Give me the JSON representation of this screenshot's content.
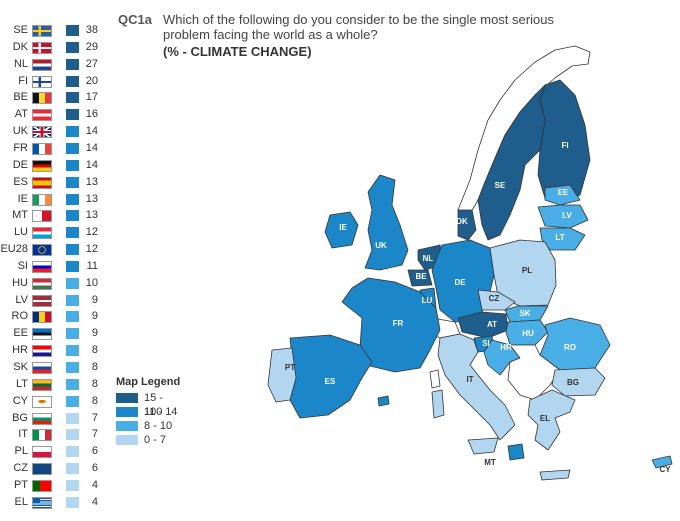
{
  "question": {
    "code": "QC1a",
    "text": "Which of the following do you consider to be the single most serious problem facing the world as a whole?",
    "subtitle": "(% - CLIMATE CHANGE)"
  },
  "legend": {
    "title": "Map Legend",
    "items": [
      {
        "label": "15 - 100",
        "color": "#1f5d8c"
      },
      {
        "label": "11 - 14",
        "color": "#1b87c9"
      },
      {
        "label": "8 - 10",
        "color": "#49ade6"
      },
      {
        "label": "0 - 7",
        "color": "#b2d6f0"
      }
    ]
  },
  "countries": [
    {
      "code": "SE",
      "value": "38",
      "flag": "se",
      "color": "#1f5d8c"
    },
    {
      "code": "DK",
      "value": "29",
      "flag": "dk",
      "color": "#1f5d8c"
    },
    {
      "code": "NL",
      "value": "27",
      "flag": "nl",
      "color": "#1f5d8c"
    },
    {
      "code": "FI",
      "value": "20",
      "flag": "fi",
      "color": "#1f5d8c"
    },
    {
      "code": "BE",
      "value": "17",
      "flag": "be",
      "color": "#1f5d8c"
    },
    {
      "code": "AT",
      "value": "16",
      "flag": "at",
      "color": "#1f5d8c"
    },
    {
      "code": "UK",
      "value": "14",
      "flag": "uk",
      "color": "#1b87c9"
    },
    {
      "code": "FR",
      "value": "14",
      "flag": "fr",
      "color": "#1b87c9"
    },
    {
      "code": "DE",
      "value": "14",
      "flag": "de",
      "color": "#1b87c9"
    },
    {
      "code": "ES",
      "value": "13",
      "flag": "es",
      "color": "#1b87c9"
    },
    {
      "code": "IE",
      "value": "13",
      "flag": "ie",
      "color": "#1b87c9"
    },
    {
      "code": "MT",
      "value": "13",
      "flag": "mt",
      "color": "#1b87c9"
    },
    {
      "code": "LU",
      "value": "12",
      "flag": "lu",
      "color": "#1b87c9"
    },
    {
      "code": "EU28",
      "value": "12",
      "flag": "eu",
      "color": "#1b87c9"
    },
    {
      "code": "SI",
      "value": "11",
      "flag": "si",
      "color": "#1b87c9"
    },
    {
      "code": "HU",
      "value": "10",
      "flag": "hu",
      "color": "#49ade6"
    },
    {
      "code": "LV",
      "value": "9",
      "flag": "lv",
      "color": "#49ade6"
    },
    {
      "code": "RO",
      "value": "9",
      "flag": "ro",
      "color": "#49ade6"
    },
    {
      "code": "EE",
      "value": "9",
      "flag": "ee",
      "color": "#49ade6"
    },
    {
      "code": "HR",
      "value": "8",
      "flag": "hr",
      "color": "#49ade6"
    },
    {
      "code": "SK",
      "value": "8",
      "flag": "sk",
      "color": "#49ade6"
    },
    {
      "code": "LT",
      "value": "8",
      "flag": "lt",
      "color": "#49ade6"
    },
    {
      "code": "CY",
      "value": "8",
      "flag": "cy",
      "color": "#49ade6"
    },
    {
      "code": "BG",
      "value": "7",
      "flag": "bg",
      "color": "#b2d6f0"
    },
    {
      "code": "IT",
      "value": "7",
      "flag": "it",
      "color": "#b2d6f0"
    },
    {
      "code": "PL",
      "value": "6",
      "flag": "pl",
      "color": "#b2d6f0"
    },
    {
      "code": "CZ",
      "value": "6",
      "flag": "cz",
      "color": "#b2d6f0"
    },
    {
      "code": "PT",
      "value": "4",
      "flag": "pt",
      "color": "#b2d6f0"
    },
    {
      "code": "EL",
      "value": "4",
      "flag": "gr",
      "color": "#b2d6f0"
    }
  ],
  "map_labels": [
    "FI",
    "SE",
    "EE",
    "LV",
    "LT",
    "DK",
    "IE",
    "UK",
    "NL",
    "BE",
    "LU",
    "DE",
    "PL",
    "CZ",
    "SK",
    "AT",
    "HU",
    "SI",
    "HR",
    "RO",
    "FR",
    "PT",
    "ES",
    "IT",
    "BG",
    "EL",
    "MT",
    "CY"
  ]
}
